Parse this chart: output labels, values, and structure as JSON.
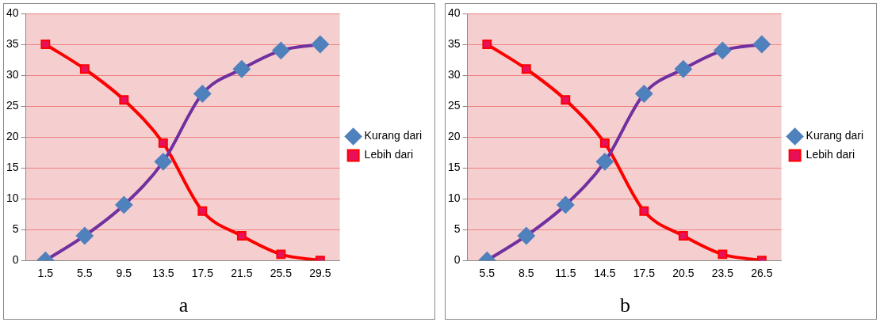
{
  "chart_data": [
    {
      "type": "line",
      "categories": [
        "1.5",
        "5.5",
        "9.5",
        "13.5",
        "17.5",
        "21.5",
        "25.5",
        "29.5"
      ],
      "series": [
        {
          "name": "Kurang dari",
          "color": "#7030a0",
          "marker": "diamond",
          "values": [
            0,
            4,
            9,
            16,
            27,
            31,
            34,
            35
          ]
        },
        {
          "name": "Lebih dari",
          "color": "#ff0000",
          "marker": "square",
          "values": [
            35,
            31,
            26,
            19,
            8,
            4,
            1,
            0
          ]
        }
      ],
      "ylim": [
        0,
        40
      ],
      "yticks": [
        0,
        5,
        10,
        15,
        20,
        25,
        30,
        35,
        40
      ],
      "grid": "y",
      "legend": "right",
      "annotations": [
        "a"
      ]
    },
    {
      "type": "line",
      "categories": [
        "5.5",
        "8.5",
        "11.5",
        "14.5",
        "17.5",
        "20.5",
        "23.5",
        "26.5"
      ],
      "series": [
        {
          "name": "Kurang dari",
          "color": "#7030a0",
          "marker": "diamond",
          "values": [
            0,
            4,
            9,
            16,
            27,
            31,
            34,
            35
          ]
        },
        {
          "name": "Lebih dari",
          "color": "#ff0000",
          "marker": "square",
          "values": [
            35,
            31,
            26,
            19,
            8,
            4,
            1,
            0
          ]
        }
      ],
      "ylim": [
        0,
        40
      ],
      "yticks": [
        0,
        5,
        10,
        15,
        20,
        25,
        30,
        35,
        40
      ],
      "grid": "y",
      "legend": "right",
      "annotations": [
        "b"
      ]
    }
  ]
}
